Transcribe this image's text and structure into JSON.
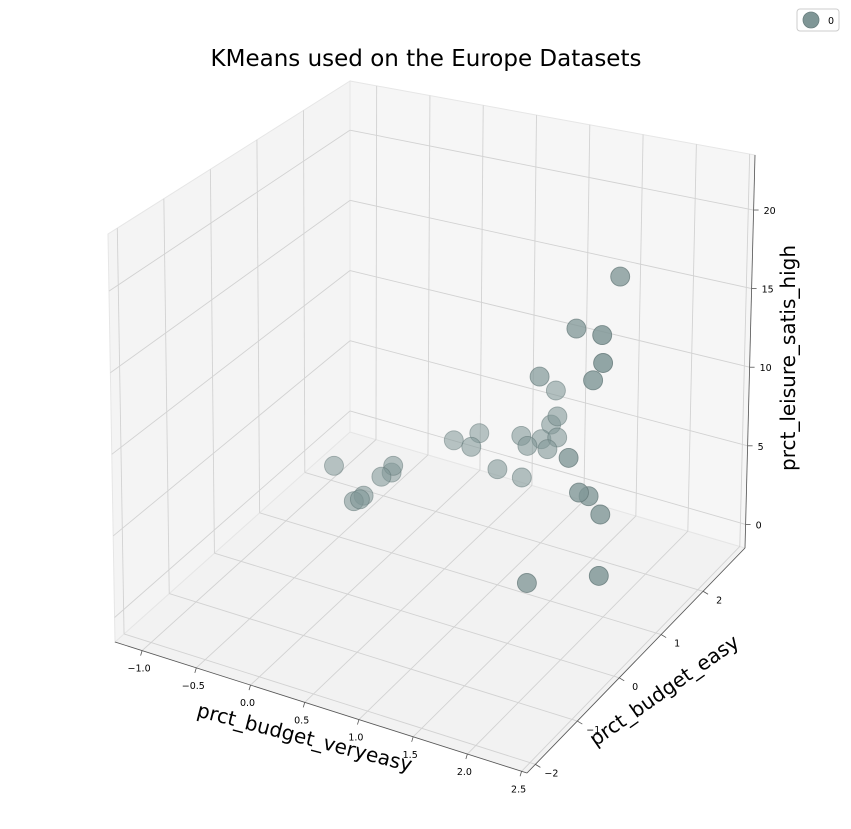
{
  "chart_data": {
    "type": "scatter",
    "title": "KMeans used on the Europe Datasets",
    "xlabel": "prct_budget_veryeasy",
    "ylabel": "prct_budget_easy",
    "zlabel": "prct_leisure_satis_high",
    "x_ticks": [
      "−1.0",
      "−0.5",
      "0.0",
      "0.5",
      "1.0",
      "1.5",
      "2.0",
      "2.5"
    ],
    "y_ticks": [
      "−2",
      "−1",
      "0",
      "1",
      "2"
    ],
    "z_ticks": [
      "0",
      "5",
      "10",
      "15",
      "20"
    ],
    "xlim": [
      -1.25,
      2.55
    ],
    "ylim": [
      -2.2,
      3.0
    ],
    "zlim": [
      -1.5,
      23.5
    ],
    "grid": true,
    "legend": {
      "position": "top-right",
      "entries": [
        "0"
      ]
    },
    "series": [
      {
        "name": "0",
        "color": "#7f9696",
        "points": [
          {
            "x": -0.8,
            "y": 1.6,
            "z": 1.0
          },
          {
            "x": -0.4,
            "y": 1.1,
            "z": 0.8
          },
          {
            "x": -0.28,
            "y": 1.7,
            "z": 1.8
          },
          {
            "x": -0.35,
            "y": 1.6,
            "z": 1.2
          },
          {
            "x": -0.35,
            "y": 1.2,
            "z": 1.0
          },
          {
            "x": -0.3,
            "y": 1.0,
            "z": 1.4
          },
          {
            "x": -0.38,
            "y": 1.9,
            "z": 0.6
          },
          {
            "x": 0.0,
            "y": 2.4,
            "z": 2.2
          },
          {
            "x": 0.25,
            "y": 2.2,
            "z": 2.8
          },
          {
            "x": 0.2,
            "y": 2.5,
            "z": 2.8
          },
          {
            "x": 0.6,
            "y": 2.5,
            "z": 3.4
          },
          {
            "x": 0.5,
            "y": 2.2,
            "z": 1.8
          },
          {
            "x": 0.7,
            "y": 2.4,
            "z": 3.2
          },
          {
            "x": 0.75,
            "y": 2.6,
            "z": 3.2
          },
          {
            "x": 0.65,
            "y": 2.4,
            "z": 1.0
          },
          {
            "x": 0.8,
            "y": 2.7,
            "z": 4.0
          },
          {
            "x": 0.9,
            "y": 2.6,
            "z": 3.6
          },
          {
            "x": 0.85,
            "y": 2.5,
            "z": 3.0
          },
          {
            "x": 0.9,
            "y": 2.6,
            "z": 5.0
          },
          {
            "x": 0.8,
            "y": 2.8,
            "z": 6.0
          },
          {
            "x": 1.3,
            "y": 1.2,
            "z": 12.0
          },
          {
            "x": 1.8,
            "y": 0.8,
            "z": 17.0
          },
          {
            "x": 1.6,
            "y": 0.2,
            "z": 2.0
          },
          {
            "x": 1.9,
            "y": 0.4,
            "z": 10.0
          },
          {
            "x": 2.0,
            "y": 0.4,
            "z": 8.0
          },
          {
            "x": 2.05,
            "y": 0.5,
            "z": 7.6
          },
          {
            "x": 2.2,
            "y": 0.4,
            "z": 7.0
          },
          {
            "x": 2.35,
            "y": 0.0,
            "z": 4.5
          },
          {
            "x": 2.2,
            "y": 0.8,
            "z": 21.0
          },
          {
            "x": 2.2,
            "y": 0.2,
            "z": 16.0
          },
          {
            "x": 2.4,
            "y": -0.1,
            "z": 20.0
          },
          {
            "x": 2.45,
            "y": -0.2,
            "z": 18.6
          }
        ]
      }
    ]
  }
}
